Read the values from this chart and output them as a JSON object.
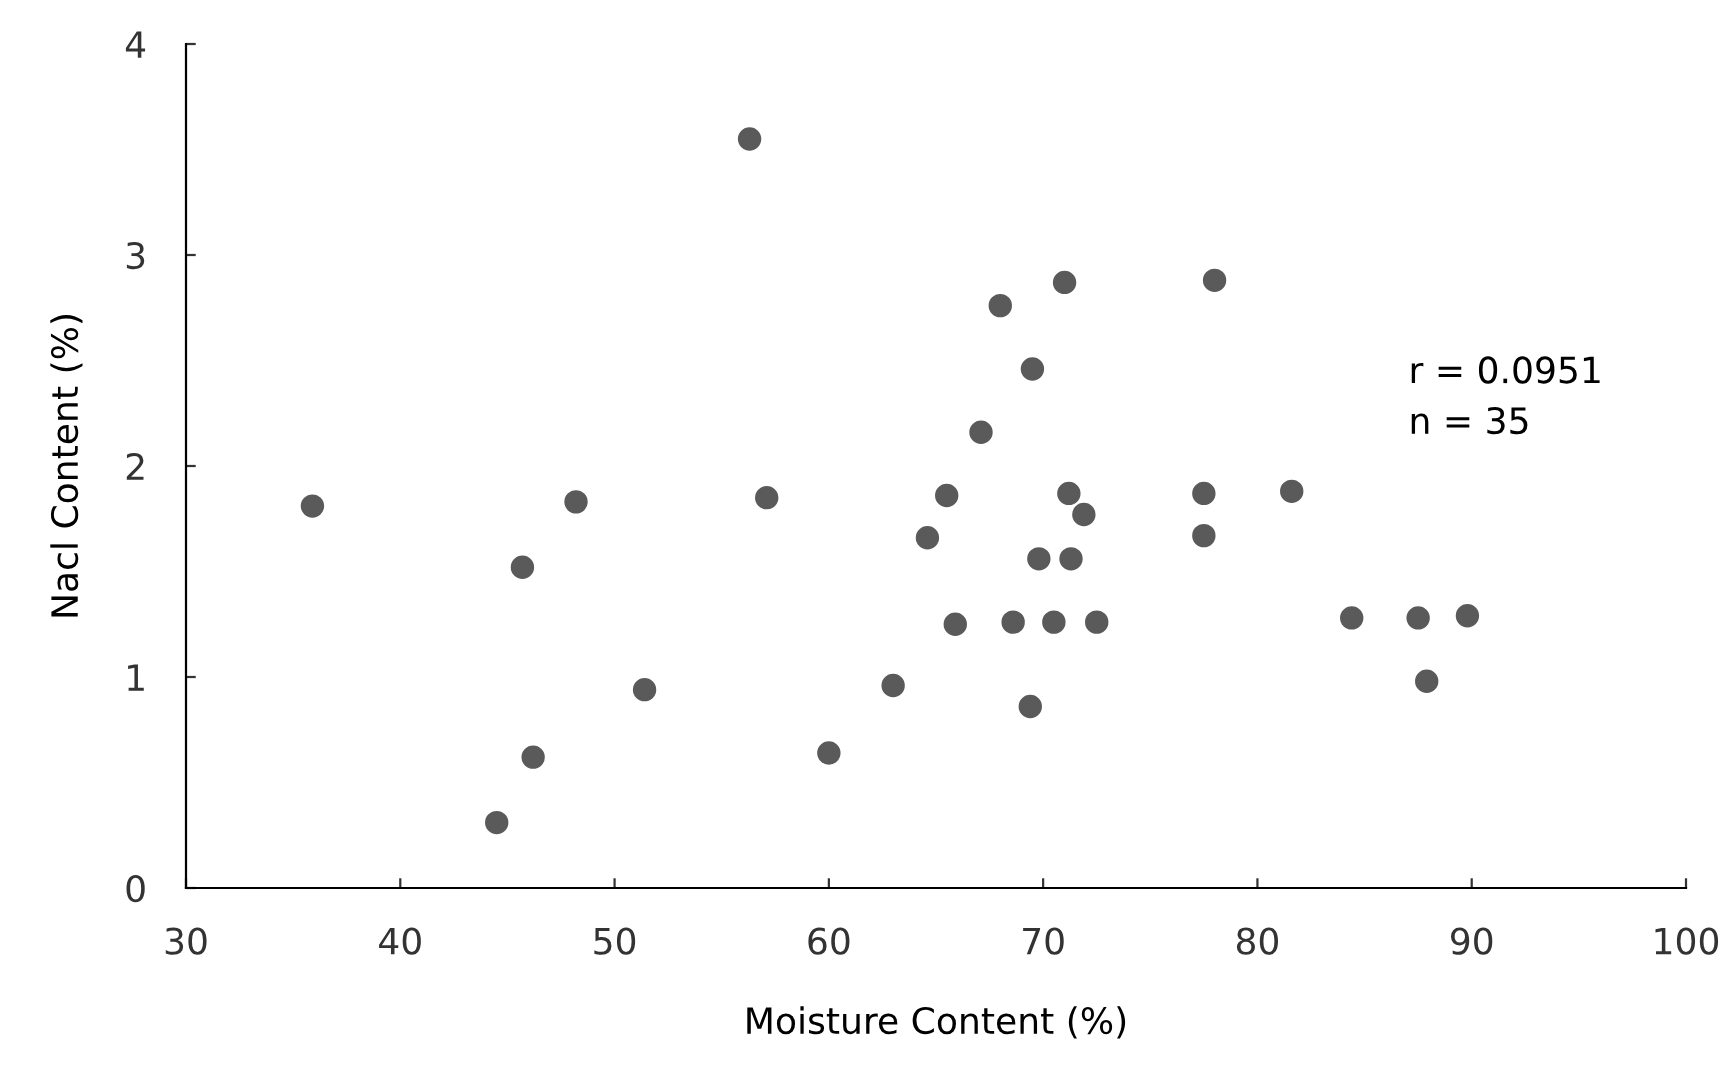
{
  "chart_data": {
    "type": "scatter",
    "xlabel": "Moisture Content (%)",
    "ylabel": "Nacl Content (%)",
    "x": [
      35.9,
      56.3,
      48.2,
      57.1,
      45.7,
      51.4,
      46.2,
      44.5,
      60.0,
      63.0,
      65.5,
      64.6,
      65.9,
      71.0,
      68.0,
      78.0,
      69.5,
      67.1,
      71.2,
      71.9,
      69.8,
      71.3,
      68.6,
      70.5,
      72.5,
      69.4,
      77.5,
      77.5,
      81.6,
      84.4,
      87.5,
      89.8,
      87.9
    ],
    "values": [
      1.81,
      3.55,
      1.83,
      1.85,
      1.52,
      0.94,
      0.62,
      0.31,
      0.64,
      0.96,
      1.86,
      1.66,
      1.25,
      2.87,
      2.76,
      2.88,
      2.46,
      2.16,
      1.87,
      1.77,
      1.56,
      1.56,
      1.26,
      1.26,
      1.26,
      0.86,
      1.87,
      1.67,
      1.88,
      1.28,
      1.28,
      1.29,
      0.98
    ],
    "color": "#5a5a5a",
    "marker": "circle",
    "grid": false,
    "legend": false,
    "xlim": [
      30,
      100
    ],
    "xticks": [
      30,
      40,
      50,
      60,
      70,
      80,
      90,
      100
    ],
    "ylim": [
      0,
      4
    ],
    "yticks": [
      0,
      1,
      2,
      3,
      4
    ],
    "annotations": [
      "r = 0.0951",
      "n = 35"
    ]
  }
}
